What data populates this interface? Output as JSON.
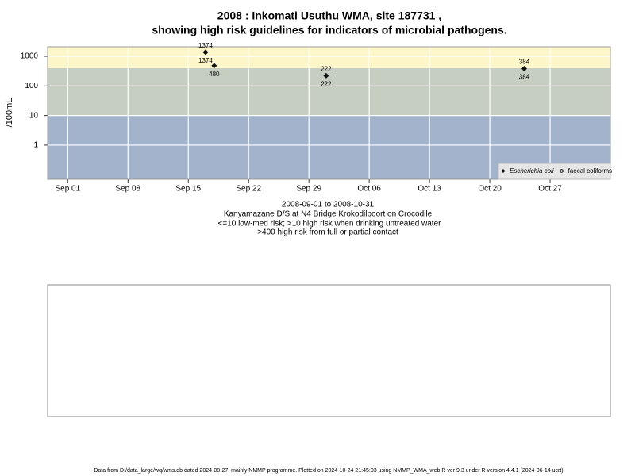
{
  "chart_data": {
    "type": "scatter",
    "title": [
      "2008 : Inkomati Usuthu WMA, site 187731 ,",
      "showing high risk guidelines for indicators of microbial pathogens."
    ],
    "ylabel": "/100mL",
    "subtitle": [
      "2008-09-01 to 2008-10-31",
      "Kanyamazane D/S at N4 Bridge Krokodilpoort on Crocodile",
      "<=10 low-med risk; >10 high risk when drinking untreated water",
      ">400 high risk from full or partial contact"
    ],
    "footer": "Data from D:/data_large/wq/wms.db dated 2024-08-27, mainly NMMP programme. Plotted on 2024-10-24 21:45:03 using NMMP_WMA_web.R ver 9.3 under R version 4.4.1 (2024-06-14 ucrt)",
    "ylog": true,
    "ylim": [
      0.07,
      2100
    ],
    "yticks": [
      1,
      10,
      100,
      1000
    ],
    "xlim": [
      "2008-08-29T16:00Z",
      "2008-11-03T00:00Z"
    ],
    "xticks": [
      {
        "value": "2008-09-01",
        "label": "Sep 01"
      },
      {
        "value": "2008-09-08",
        "label": "Sep 08"
      },
      {
        "value": "2008-09-15",
        "label": "Sep 15"
      },
      {
        "value": "2008-09-22",
        "label": "Sep 22"
      },
      {
        "value": "2008-09-29",
        "label": "Sep 29"
      },
      {
        "value": "2008-10-06",
        "label": "Oct 06"
      },
      {
        "value": "2008-10-13",
        "label": "Oct 13"
      },
      {
        "value": "2008-10-20",
        "label": "Oct 20"
      },
      {
        "value": "2008-10-27",
        "label": "Oct 27"
      }
    ],
    "thresholds": [
      10,
      400
    ],
    "band_colors": [
      "#a3b3cc",
      "#c5cec0",
      "#fdf6c8"
    ],
    "grid": true,
    "legend": "bottom-right",
    "series": [
      {
        "name": "Escherichia coli",
        "marker": "diamond",
        "color": "#111111",
        "label_side": "below",
        "x": [
          "2008-09-17",
          "2008-09-18",
          "2008-10-01",
          "2008-10-24"
        ],
        "values": [
          1374,
          480,
          222,
          384
        ]
      },
      {
        "name": "faecal coliforms",
        "marker": "circle",
        "color": "#111111",
        "label_side": "above",
        "x": [
          "2008-09-17",
          "2008-10-01",
          "2008-10-24"
        ],
        "values": [
          1374,
          222,
          384
        ]
      }
    ]
  }
}
